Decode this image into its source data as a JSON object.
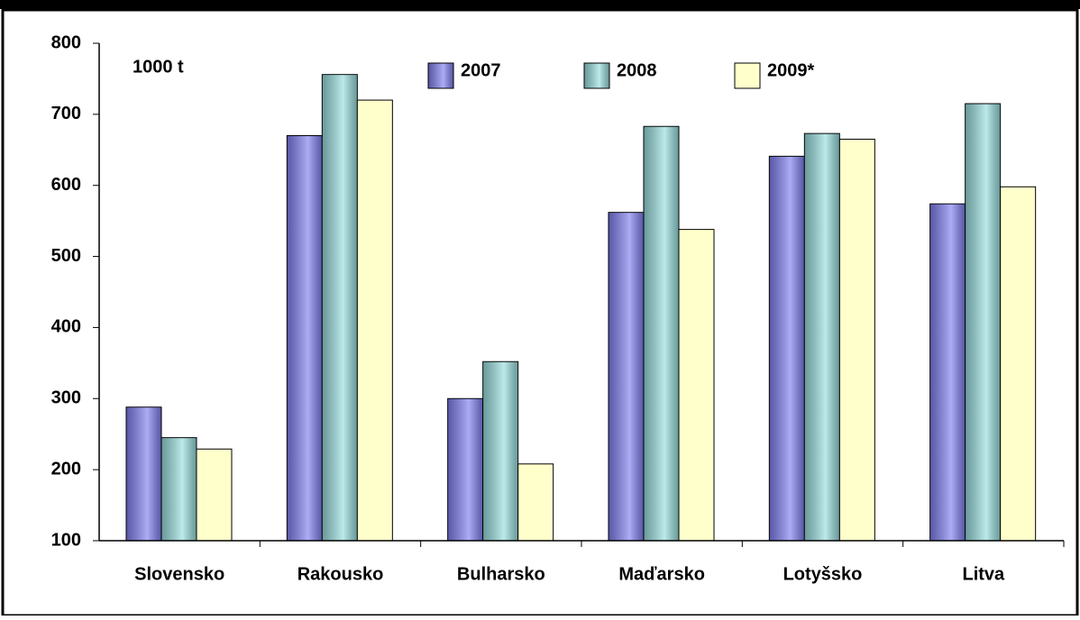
{
  "chart_data": {
    "type": "bar",
    "annotation": "1000 t",
    "categories": [
      "Slovensko",
      "Rakousko",
      "Bulharsko",
      "Maďarsko",
      "Lotyšsko",
      "Litva"
    ],
    "series": [
      {
        "name": "2007",
        "color": "#8080f0",
        "values": [
          288,
          670,
          300,
          562,
          641,
          574
        ]
      },
      {
        "name": "2008",
        "color": "#99dddd",
        "values": [
          245,
          756,
          352,
          683,
          673,
          715
        ]
      },
      {
        "name": "2009*",
        "color": "#ffffcc",
        "values": [
          229,
          720,
          208,
          538,
          665,
          598
        ]
      }
    ],
    "ylim": [
      100,
      800
    ],
    "yticks": [
      100,
      200,
      300,
      400,
      500,
      600,
      700,
      800
    ],
    "grid": false
  }
}
